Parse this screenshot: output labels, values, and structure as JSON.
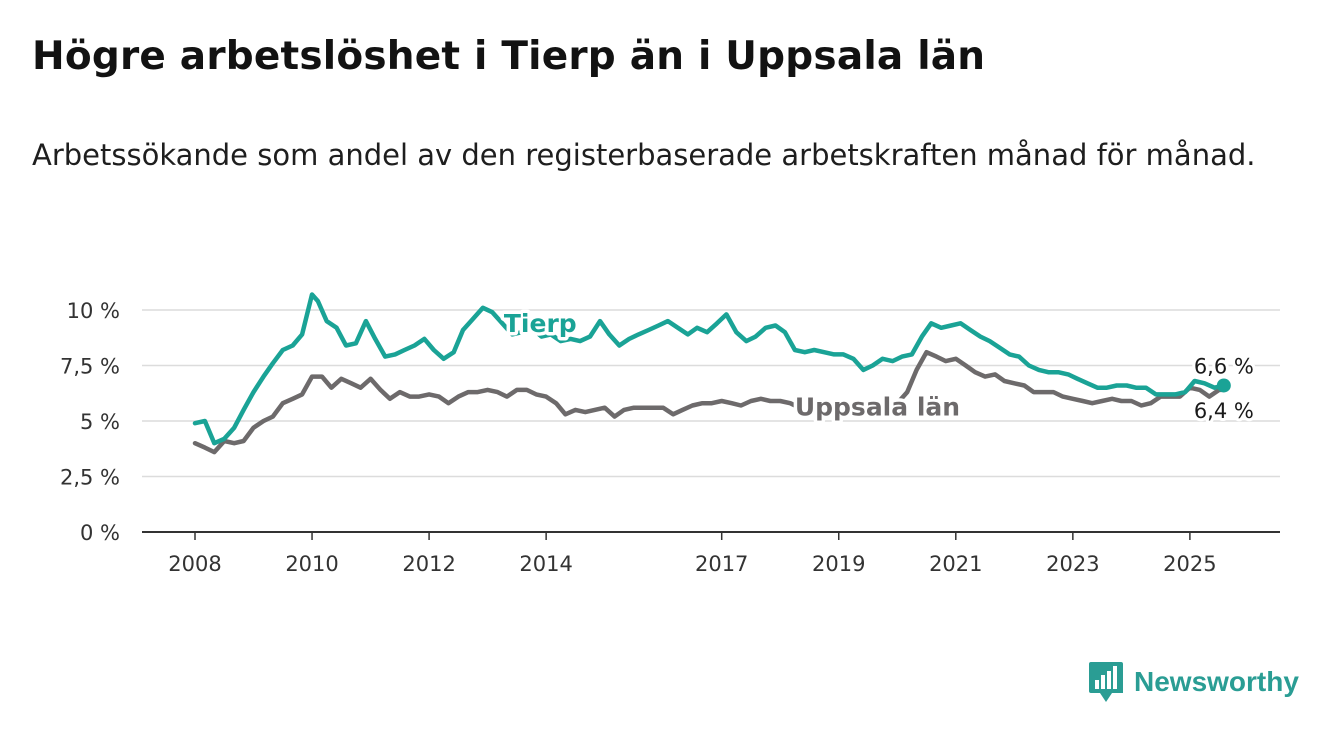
{
  "title": "Högre arbetslöshet i Tierp än i Uppsala län",
  "subtitle": "Arbetssökande som andel av den registerbaserade arbetskraften månad för månad.",
  "brand": {
    "name": "Newsworthy",
    "color": "#2a9d94",
    "icon": "bar-chart-badge-icon"
  },
  "chart_data": {
    "type": "line",
    "ylim": [
      0,
      10
    ],
    "y_ticks": [
      {
        "value": 0,
        "label": "0 %"
      },
      {
        "value": 2.5,
        "label": "2,5 %"
      },
      {
        "value": 5,
        "label": "5 %"
      },
      {
        "value": 7.5,
        "label": "7,5 %"
      },
      {
        "value": 10,
        "label": "10 %"
      }
    ],
    "x_ticks": [
      {
        "value": 2008,
        "label": "2008"
      },
      {
        "value": 2010,
        "label": "2010"
      },
      {
        "value": 2012,
        "label": "2012"
      },
      {
        "value": 2014,
        "label": "2014"
      },
      {
        "value": 2017,
        "label": "2017"
      },
      {
        "value": 2019,
        "label": "2019"
      },
      {
        "value": 2021,
        "label": "2021"
      },
      {
        "value": 2023,
        "label": "2023"
      },
      {
        "value": 2025,
        "label": "2025"
      }
    ],
    "xlim": [
      2008,
      2025.6
    ],
    "grid": true,
    "series": [
      {
        "name": "Tierp",
        "color": "#1aa396",
        "end_label": "6,6 %",
        "points": [
          [
            2008.0,
            4.9
          ],
          [
            2008.17,
            5.0
          ],
          [
            2008.33,
            4.0
          ],
          [
            2008.5,
            4.2
          ],
          [
            2008.67,
            4.7
          ],
          [
            2008.83,
            5.5
          ],
          [
            2009.0,
            6.3
          ],
          [
            2009.17,
            7.0
          ],
          [
            2009.33,
            7.6
          ],
          [
            2009.5,
            8.2
          ],
          [
            2009.67,
            8.4
          ],
          [
            2009.83,
            8.9
          ],
          [
            2010.0,
            10.7
          ],
          [
            2010.1,
            10.4
          ],
          [
            2010.25,
            9.5
          ],
          [
            2010.42,
            9.2
          ],
          [
            2010.58,
            8.4
          ],
          [
            2010.75,
            8.5
          ],
          [
            2010.92,
            9.5
          ],
          [
            2011.08,
            8.7
          ],
          [
            2011.25,
            7.9
          ],
          [
            2011.42,
            8.0
          ],
          [
            2011.58,
            8.2
          ],
          [
            2011.75,
            8.4
          ],
          [
            2011.92,
            8.7
          ],
          [
            2012.08,
            8.2
          ],
          [
            2012.25,
            7.8
          ],
          [
            2012.42,
            8.1
          ],
          [
            2012.58,
            9.1
          ],
          [
            2012.75,
            9.6
          ],
          [
            2012.92,
            10.1
          ],
          [
            2013.08,
            9.9
          ],
          [
            2013.25,
            9.4
          ],
          [
            2013.42,
            8.9
          ],
          [
            2013.58,
            9.0
          ],
          [
            2013.75,
            9.2
          ],
          [
            2013.92,
            8.8
          ],
          [
            2014.08,
            8.9
          ],
          [
            2014.25,
            8.6
          ],
          [
            2014.42,
            8.7
          ],
          [
            2014.58,
            8.6
          ],
          [
            2014.75,
            8.8
          ],
          [
            2014.92,
            9.5
          ],
          [
            2015.08,
            8.9
          ],
          [
            2015.25,
            8.4
          ],
          [
            2015.42,
            8.7
          ],
          [
            2015.58,
            8.9
          ],
          [
            2015.75,
            9.1
          ],
          [
            2015.92,
            9.3
          ],
          [
            2016.08,
            9.5
          ],
          [
            2016.25,
            9.2
          ],
          [
            2016.42,
            8.9
          ],
          [
            2016.58,
            9.2
          ],
          [
            2016.75,
            9.0
          ],
          [
            2016.92,
            9.4
          ],
          [
            2017.08,
            9.8
          ],
          [
            2017.25,
            9.0
          ],
          [
            2017.42,
            8.6
          ],
          [
            2017.58,
            8.8
          ],
          [
            2017.75,
            9.2
          ],
          [
            2017.92,
            9.3
          ],
          [
            2018.08,
            9.0
          ],
          [
            2018.25,
            8.2
          ],
          [
            2018.42,
            8.1
          ],
          [
            2018.58,
            8.2
          ],
          [
            2018.75,
            8.1
          ],
          [
            2018.92,
            8.0
          ],
          [
            2019.08,
            8.0
          ],
          [
            2019.25,
            7.8
          ],
          [
            2019.42,
            7.3
          ],
          [
            2019.58,
            7.5
          ],
          [
            2019.75,
            7.8
          ],
          [
            2019.92,
            7.7
          ],
          [
            2020.08,
            7.9
          ],
          [
            2020.25,
            8.0
          ],
          [
            2020.42,
            8.8
          ],
          [
            2020.58,
            9.4
          ],
          [
            2020.75,
            9.2
          ],
          [
            2020.92,
            9.3
          ],
          [
            2021.08,
            9.4
          ],
          [
            2021.25,
            9.1
          ],
          [
            2021.42,
            8.8
          ],
          [
            2021.58,
            8.6
          ],
          [
            2021.75,
            8.3
          ],
          [
            2021.92,
            8.0
          ],
          [
            2022.08,
            7.9
          ],
          [
            2022.25,
            7.5
          ],
          [
            2022.42,
            7.3
          ],
          [
            2022.58,
            7.2
          ],
          [
            2022.75,
            7.2
          ],
          [
            2022.92,
            7.1
          ],
          [
            2023.08,
            6.9
          ],
          [
            2023.25,
            6.7
          ],
          [
            2023.42,
            6.5
          ],
          [
            2023.58,
            6.5
          ],
          [
            2023.75,
            6.6
          ],
          [
            2023.92,
            6.6
          ],
          [
            2024.08,
            6.5
          ],
          [
            2024.25,
            6.5
          ],
          [
            2024.42,
            6.2
          ],
          [
            2024.58,
            6.2
          ],
          [
            2024.75,
            6.2
          ],
          [
            2024.92,
            6.3
          ],
          [
            2025.08,
            6.8
          ],
          [
            2025.25,
            6.7
          ],
          [
            2025.42,
            6.5
          ],
          [
            2025.58,
            6.6
          ]
        ]
      },
      {
        "name": "Uppsala län",
        "color": "#6d6a6b",
        "end_label": "6,4 %",
        "points": [
          [
            2008.0,
            4.0
          ],
          [
            2008.17,
            3.8
          ],
          [
            2008.33,
            3.6
          ],
          [
            2008.5,
            4.1
          ],
          [
            2008.67,
            4.0
          ],
          [
            2008.83,
            4.1
          ],
          [
            2009.0,
            4.7
          ],
          [
            2009.17,
            5.0
          ],
          [
            2009.33,
            5.2
          ],
          [
            2009.5,
            5.8
          ],
          [
            2009.67,
            6.0
          ],
          [
            2009.83,
            6.2
          ],
          [
            2010.0,
            7.0
          ],
          [
            2010.17,
            7.0
          ],
          [
            2010.33,
            6.5
          ],
          [
            2010.5,
            6.9
          ],
          [
            2010.67,
            6.7
          ],
          [
            2010.83,
            6.5
          ],
          [
            2011.0,
            6.9
          ],
          [
            2011.17,
            6.4
          ],
          [
            2011.33,
            6.0
          ],
          [
            2011.5,
            6.3
          ],
          [
            2011.67,
            6.1
          ],
          [
            2011.83,
            6.1
          ],
          [
            2012.0,
            6.2
          ],
          [
            2012.17,
            6.1
          ],
          [
            2012.33,
            5.8
          ],
          [
            2012.5,
            6.1
          ],
          [
            2012.67,
            6.3
          ],
          [
            2012.83,
            6.3
          ],
          [
            2013.0,
            6.4
          ],
          [
            2013.17,
            6.3
          ],
          [
            2013.33,
            6.1
          ],
          [
            2013.5,
            6.4
          ],
          [
            2013.67,
            6.4
          ],
          [
            2013.83,
            6.2
          ],
          [
            2014.0,
            6.1
          ],
          [
            2014.17,
            5.8
          ],
          [
            2014.33,
            5.3
          ],
          [
            2014.5,
            5.5
          ],
          [
            2014.67,
            5.4
          ],
          [
            2014.83,
            5.5
          ],
          [
            2015.0,
            5.6
          ],
          [
            2015.17,
            5.2
          ],
          [
            2015.33,
            5.5
          ],
          [
            2015.5,
            5.6
          ],
          [
            2015.67,
            5.6
          ],
          [
            2015.83,
            5.6
          ],
          [
            2016.0,
            5.6
          ],
          [
            2016.17,
            5.3
          ],
          [
            2016.33,
            5.5
          ],
          [
            2016.5,
            5.7
          ],
          [
            2016.67,
            5.8
          ],
          [
            2016.83,
            5.8
          ],
          [
            2017.0,
            5.9
          ],
          [
            2017.17,
            5.8
          ],
          [
            2017.33,
            5.7
          ],
          [
            2017.5,
            5.9
          ],
          [
            2017.67,
            6.0
          ],
          [
            2017.83,
            5.9
          ],
          [
            2018.0,
            5.9
          ],
          [
            2018.17,
            5.8
          ],
          [
            2018.33,
            5.6
          ],
          [
            2018.5,
            5.6
          ],
          [
            2018.67,
            5.6
          ],
          [
            2018.83,
            5.5
          ],
          [
            2019.0,
            5.4
          ],
          [
            2019.17,
            5.4
          ],
          [
            2019.33,
            5.4
          ],
          [
            2019.5,
            5.5
          ],
          [
            2019.67,
            5.5
          ],
          [
            2019.83,
            5.6
          ],
          [
            2020.0,
            5.8
          ],
          [
            2020.17,
            6.3
          ],
          [
            2020.33,
            7.3
          ],
          [
            2020.5,
            8.1
          ],
          [
            2020.67,
            7.9
          ],
          [
            2020.83,
            7.7
          ],
          [
            2021.0,
            7.8
          ],
          [
            2021.17,
            7.5
          ],
          [
            2021.33,
            7.2
          ],
          [
            2021.5,
            7.0
          ],
          [
            2021.67,
            7.1
          ],
          [
            2021.83,
            6.8
          ],
          [
            2022.0,
            6.7
          ],
          [
            2022.17,
            6.6
          ],
          [
            2022.33,
            6.3
          ],
          [
            2022.5,
            6.3
          ],
          [
            2022.67,
            6.3
          ],
          [
            2022.83,
            6.1
          ],
          [
            2023.0,
            6.0
          ],
          [
            2023.17,
            5.9
          ],
          [
            2023.33,
            5.8
          ],
          [
            2023.5,
            5.9
          ],
          [
            2023.67,
            6.0
          ],
          [
            2023.83,
            5.9
          ],
          [
            2024.0,
            5.9
          ],
          [
            2024.17,
            5.7
          ],
          [
            2024.33,
            5.8
          ],
          [
            2024.5,
            6.1
          ],
          [
            2024.67,
            6.1
          ],
          [
            2024.83,
            6.1
          ],
          [
            2025.0,
            6.5
          ],
          [
            2025.17,
            6.4
          ],
          [
            2025.33,
            6.1
          ],
          [
            2025.5,
            6.4
          ],
          [
            2025.58,
            6.4
          ]
        ]
      }
    ]
  }
}
